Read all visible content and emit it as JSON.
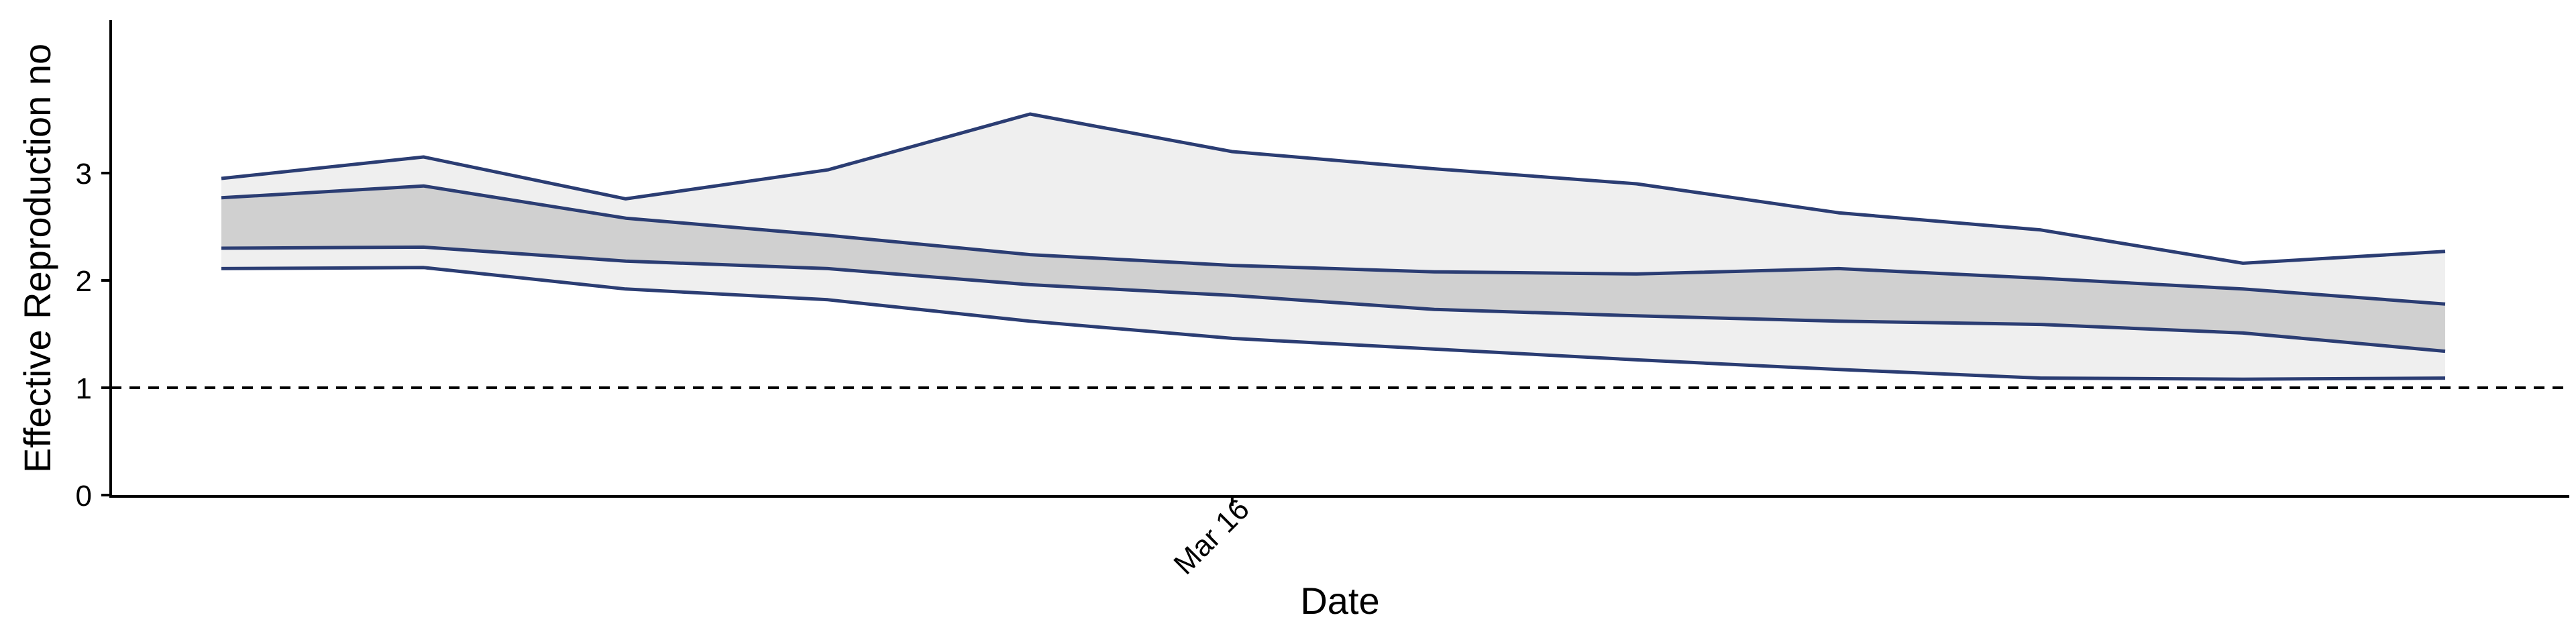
{
  "chart_data": {
    "type": "area",
    "xlabel": "Date",
    "ylabel": "Effective Reproduction no",
    "ylim": [
      0,
      3.7
    ],
    "y_ticks": [
      0,
      1,
      2,
      3
    ],
    "x_tick_label": "Mar 16",
    "reference_line": {
      "y": 1,
      "style": "dashed"
    },
    "grid": false,
    "colors": {
      "line": "#2b3d73",
      "outer_band": "#efefef",
      "inner_band": "#d0d0d0",
      "reference": "#000000"
    },
    "series": [
      {
        "values": [
          2.95,
          3.15,
          2.76,
          3.03,
          3.55,
          3.2,
          3.04,
          2.9,
          2.63,
          2.47,
          2.16,
          2.27
        ]
      },
      {
        "values": [
          2.77,
          2.88,
          2.58,
          2.42,
          2.24,
          2.14,
          2.08,
          2.06,
          2.11,
          2.02,
          1.92,
          1.78
        ]
      },
      {
        "values": [
          2.3,
          2.31,
          2.18,
          2.11,
          1.96,
          1.86,
          1.73,
          1.67,
          1.62,
          1.59,
          1.51,
          1.34
        ]
      },
      {
        "values": [
          2.11,
          2.12,
          1.92,
          1.82,
          1.62,
          1.46,
          1.36,
          1.26,
          1.17,
          1.09,
          1.08,
          1.09
        ]
      }
    ],
    "x_tick_index": 5
  }
}
